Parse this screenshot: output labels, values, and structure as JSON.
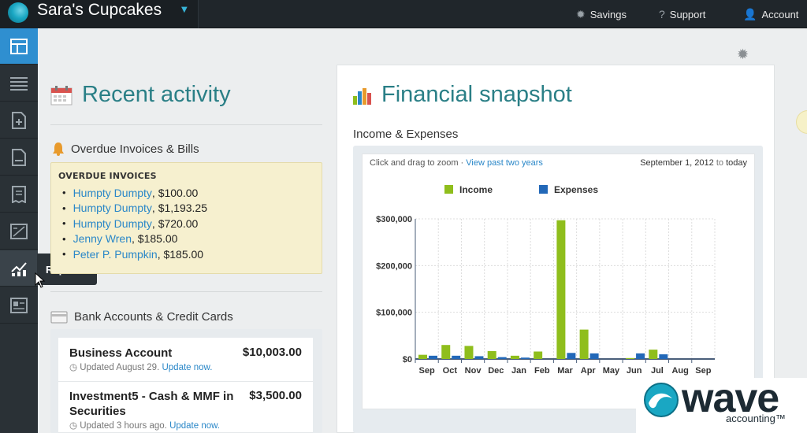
{
  "app": {
    "business_name": "Sara's Cupcakes"
  },
  "topnav": {
    "savings": "Savings",
    "support": "Support",
    "account": "Account"
  },
  "sidebar": {
    "items": [
      {
        "name": "dashboard",
        "glyph": "▣"
      },
      {
        "name": "transactions",
        "glyph": "☰"
      },
      {
        "name": "new-invoice",
        "glyph": "🗋"
      },
      {
        "name": "invoices",
        "glyph": "🗎"
      },
      {
        "name": "bills",
        "glyph": "🧾"
      },
      {
        "name": "accounting",
        "glyph": "±"
      },
      {
        "name": "reports",
        "glyph": "📈"
      },
      {
        "name": "contacts",
        "glyph": "▤"
      }
    ],
    "tooltip": "Reports"
  },
  "recent": {
    "title": "Recent activity",
    "overdue_heading": "Overdue Invoices & Bills",
    "overdue_box_title": "OVERDUE INVOICES",
    "overdue_items": [
      {
        "name": "Humpty Dumpty",
        "amount": ", $100.00"
      },
      {
        "name": "Humpty Dumpty",
        "amount": ", $1,193.25"
      },
      {
        "name": "Humpty Dumpty",
        "amount": ", $720.00"
      },
      {
        "name": "Jenny Wren",
        "amount": ", $185.00"
      },
      {
        "name": "Peter P. Pumpkin",
        "amount": ", $185.00"
      }
    ],
    "bank_heading": "Bank Accounts & Credit Cards",
    "accounts": [
      {
        "name": "Business Account",
        "amount": "$10,003.00",
        "updated": "Updated August 29.",
        "update_link": "Update now."
      },
      {
        "name": "Investment5 - Cash & MMF in Securities",
        "amount": "$3,500.00",
        "updated": "Updated 3 hours ago.",
        "update_link": "Update now."
      }
    ]
  },
  "snapshot": {
    "title": "Financial snapshot",
    "chart_label": "Income & Expenses",
    "zoom_hint": "Click and drag to zoom",
    "zoom_sep": " · ",
    "zoom_link": "View past two years",
    "date_start": "September 1, 2012",
    "date_to": " to ",
    "date_end": "today"
  },
  "chart_data": {
    "type": "bar",
    "title": "",
    "xlabel": "",
    "ylabel": "",
    "categories": [
      "Sep",
      "Oct",
      "Nov",
      "Dec",
      "Jan",
      "Feb",
      "Mar",
      "Apr",
      "May",
      "Jun",
      "Jul",
      "Aug",
      "Sep"
    ],
    "series": [
      {
        "name": "Income",
        "color": "#8fbe1c",
        "values": [
          9000,
          30000,
          28000,
          17000,
          7000,
          16000,
          297000,
          63000,
          0,
          2000,
          20000,
          0,
          0
        ]
      },
      {
        "name": "Expenses",
        "color": "#2268b8",
        "values": [
          7000,
          7000,
          6000,
          4000,
          3000,
          0,
          13000,
          12000,
          0,
          12000,
          10000,
          0,
          0
        ]
      }
    ],
    "ylim": [
      0,
      300000
    ],
    "yticks": [
      "$300,000",
      "$200,000",
      "$100,000",
      "$0"
    ],
    "grid": true,
    "legend_position": "top"
  },
  "watermark": {
    "word": "wave",
    "sub": "accounting",
    "tm": "™"
  }
}
